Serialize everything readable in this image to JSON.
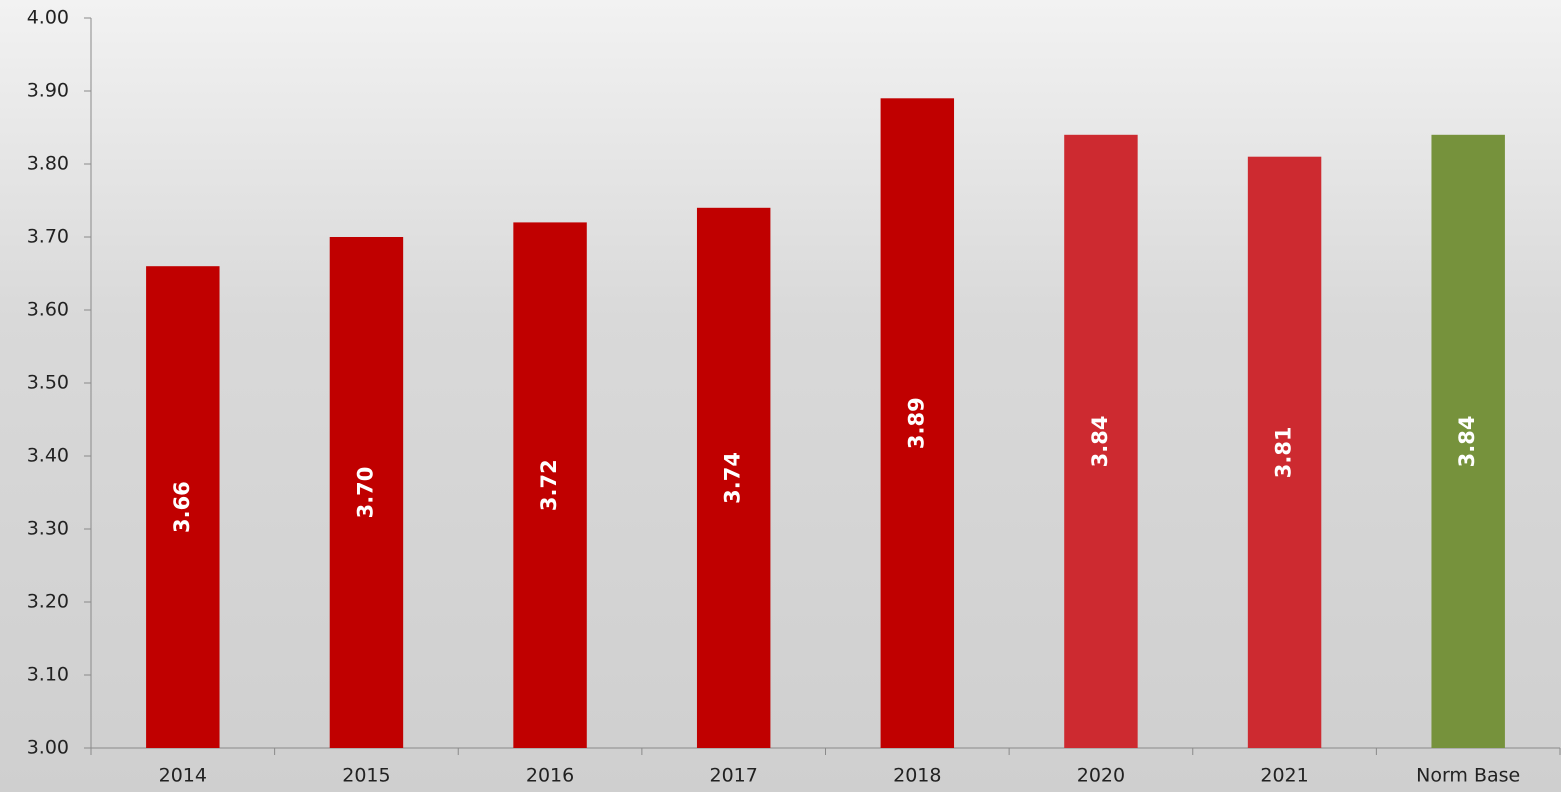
{
  "chart_data": {
    "type": "bar",
    "categories": [
      "2014",
      "2015",
      "2016",
      "2017",
      "2018",
      "2020",
      "2021",
      "Norm Base"
    ],
    "values": [
      3.66,
      3.7,
      3.72,
      3.74,
      3.89,
      3.84,
      3.81,
      3.84
    ],
    "value_labels": [
      "3.66",
      "3.70",
      "3.72",
      "3.74",
      "3.89",
      "3.84",
      "3.81",
      "3.84"
    ],
    "colors": [
      "#c00000",
      "#c00000",
      "#c00000",
      "#c00000",
      "#c00000",
      "#cd2a30",
      "#cd2a30",
      "#76923c"
    ],
    "ylim": [
      3,
      4
    ],
    "yticks": [
      {
        "value": 3,
        "label": "3.00"
      },
      {
        "value": 3.1,
        "label": "3.10"
      },
      {
        "value": 3.2,
        "label": "3.20"
      },
      {
        "value": 3.3,
        "label": "3.30"
      },
      {
        "value": 3.4,
        "label": "3.40"
      },
      {
        "value": 3.5,
        "label": "3.50"
      },
      {
        "value": 3.6,
        "label": "3.60"
      },
      {
        "value": 3.7,
        "label": "3.70"
      },
      {
        "value": 3.8,
        "label": "3.80"
      },
      {
        "value": 3.9,
        "label": "3.90"
      },
      {
        "value": 4,
        "label": "4.00"
      }
    ],
    "grid": false
  }
}
